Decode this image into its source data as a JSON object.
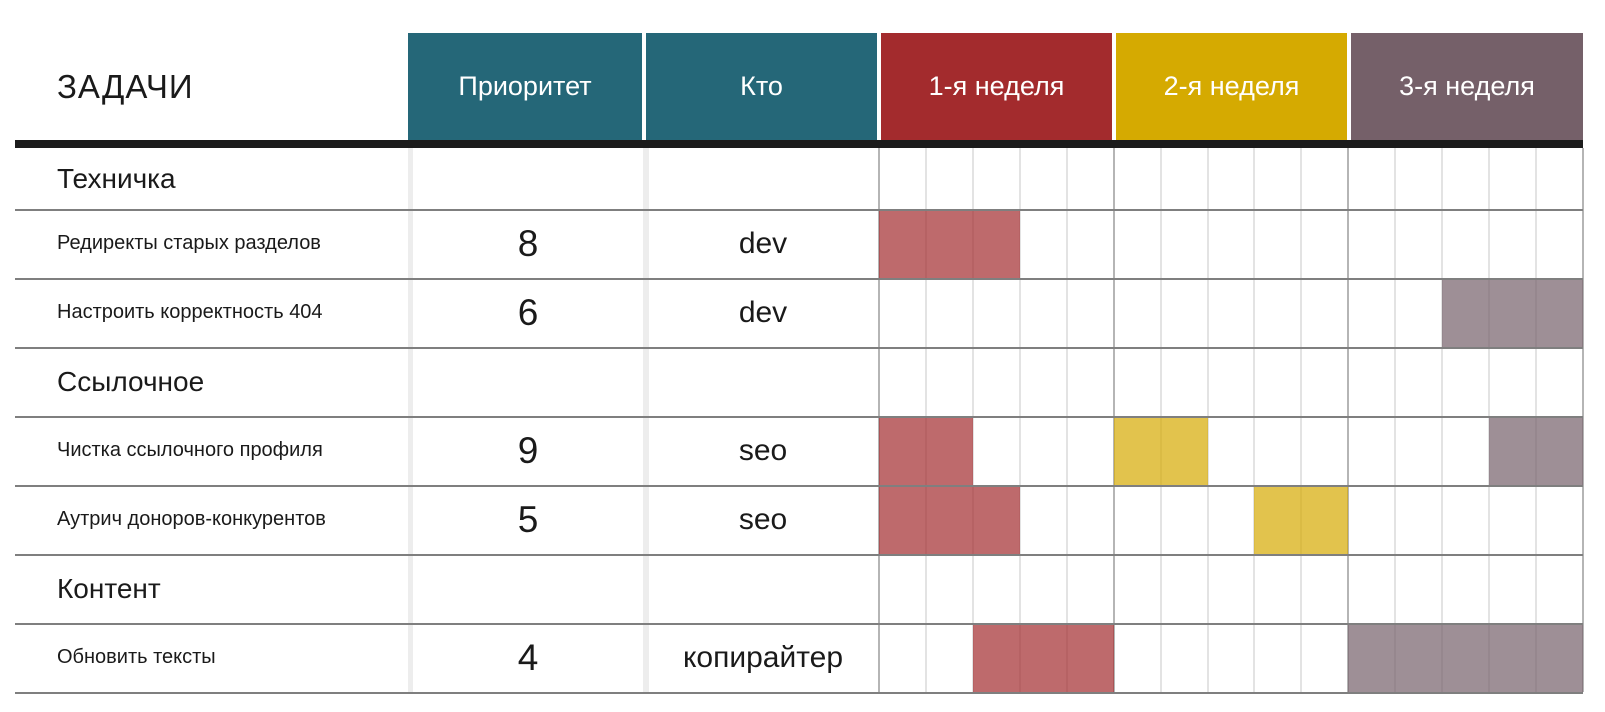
{
  "page": {
    "title": "ЗАДАЧИ"
  },
  "colors": {
    "teal": "#256778",
    "week1_red": "#a32b2d",
    "week2_yellow": "#d5aa01",
    "week3_mauve": "#756069",
    "grid_day": "#e3e3e3",
    "grid_week": "#b5b5b5",
    "row_separator": "#7f7f7f",
    "header_underline": "#1c1c1c",
    "text": "#1a1a1a"
  },
  "chart_data": {
    "type": "table",
    "subtype": "gantt",
    "title": "ЗАДАЧИ",
    "days_per_week": 5,
    "legend_position": "none",
    "grid": "on",
    "columns": [
      {
        "label": "Приоритет",
        "color": "#256778"
      },
      {
        "label": "Кто",
        "color": "#256778"
      },
      {
        "label": "1-я неделя",
        "color": "#a32b2d"
      },
      {
        "label": "2-я неделя",
        "color": "#d5aa01"
      },
      {
        "label": "3-я неделя",
        "color": "#756069"
      }
    ],
    "rows": [
      {
        "kind": "section",
        "task": "Техничка",
        "priority": "",
        "who": "",
        "bars": []
      },
      {
        "kind": "task",
        "task": "Редиректы старых разделов",
        "priority": "8",
        "who": "dev",
        "bars": [
          {
            "week": 1,
            "day_start": 1,
            "day_end": 3,
            "color": "#a32b2d"
          }
        ]
      },
      {
        "kind": "task",
        "task": "Настроить корректность 404",
        "priority": "6",
        "who": "dev",
        "bars": [
          {
            "week": 3,
            "day_start": 3,
            "day_end": 5,
            "color": "#756069"
          }
        ]
      },
      {
        "kind": "section",
        "task": "Ссылочное",
        "priority": "",
        "who": "",
        "bars": []
      },
      {
        "kind": "task",
        "task": "Чистка ссылочного профиля",
        "priority": "9",
        "who": "seo",
        "bars": [
          {
            "week": 1,
            "day_start": 1,
            "day_end": 2,
            "color": "#a32b2d"
          },
          {
            "week": 2,
            "day_start": 1,
            "day_end": 2,
            "color": "#d5aa01"
          },
          {
            "week": 3,
            "day_start": 4,
            "day_end": 5,
            "color": "#756069"
          }
        ]
      },
      {
        "kind": "task",
        "task": "Аутрич доноров-конкурентов",
        "priority": "5",
        "who": "seo",
        "bars": [
          {
            "week": 1,
            "day_start": 1,
            "day_end": 3,
            "color": "#a32b2d"
          },
          {
            "week": 2,
            "day_start": 4,
            "day_end": 5,
            "color": "#d5aa01"
          }
        ]
      },
      {
        "kind": "section",
        "task": "Контент",
        "priority": "",
        "who": "",
        "bars": []
      },
      {
        "kind": "task",
        "task": "Обновить тексты",
        "priority": "4",
        "who": "копирайтер",
        "bars": [
          {
            "week": 1,
            "day_start": 3,
            "day_end": 5,
            "color": "#a32b2d"
          },
          {
            "week": 3,
            "day_start": 1,
            "day_end": 5,
            "color": "#756069"
          }
        ]
      }
    ]
  }
}
